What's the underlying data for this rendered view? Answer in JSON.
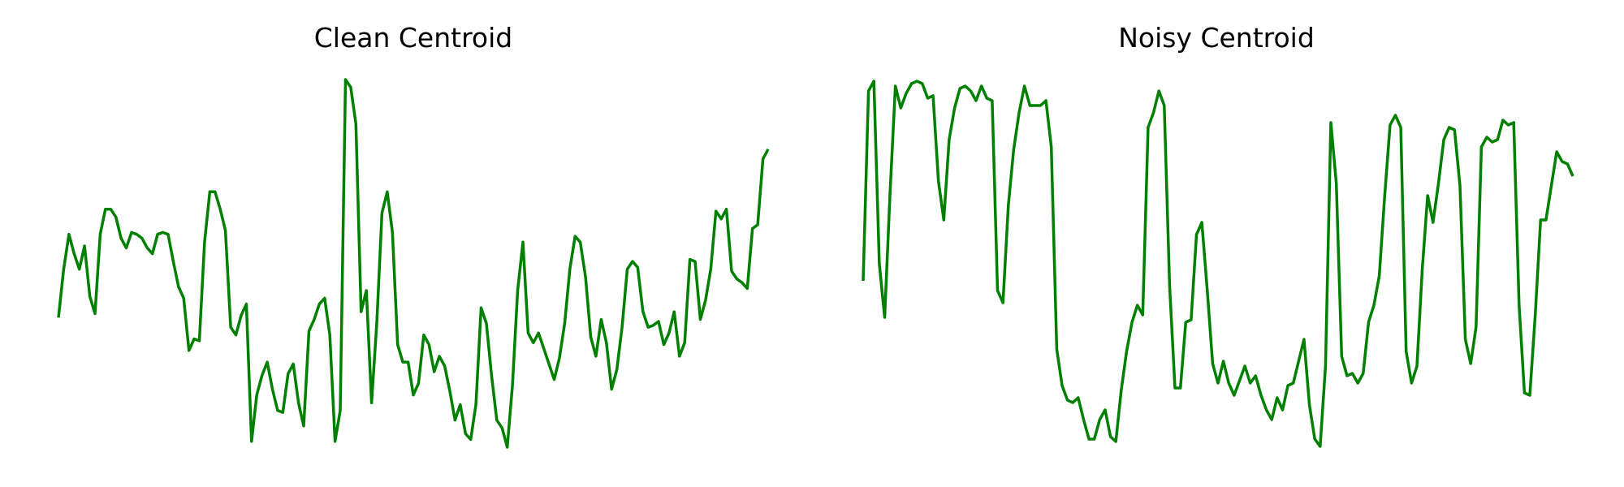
{
  "chart_data": [
    {
      "type": "line",
      "title": "Clean Centroid",
      "xlabel": "",
      "ylabel": "",
      "axes_visible": false,
      "grid": false,
      "color": "#008000",
      "values": [
        -0.38,
        -0.13,
        0.05,
        -0.05,
        -0.13,
        -0.01,
        -0.27,
        -0.36,
        0.05,
        0.18,
        0.18,
        0.14,
        0.03,
        -0.02,
        0.06,
        0.05,
        0.03,
        -0.02,
        -0.05,
        0.05,
        0.06,
        0.05,
        -0.09,
        -0.22,
        -0.28,
        -0.55,
        -0.49,
        -0.5,
        0.01,
        0.27,
        0.27,
        0.18,
        0.07,
        -0.43,
        -0.47,
        -0.37,
        -0.31,
        -1.02,
        -0.78,
        -0.68,
        -0.61,
        -0.75,
        -0.86,
        -0.87,
        -0.67,
        -0.62,
        -0.82,
        -0.94,
        -0.45,
        -0.39,
        -0.31,
        -0.28,
        -0.47,
        -1.02,
        -0.86,
        0.85,
        0.81,
        0.62,
        -0.35,
        -0.24,
        -0.82,
        -0.41,
        0.16,
        0.27,
        0.06,
        -0.52,
        -0.61,
        -0.61,
        -0.78,
        -0.72,
        -0.47,
        -0.52,
        -0.66,
        -0.58,
        -0.63,
        -0.76,
        -0.91,
        -0.83,
        -0.98,
        -1.01,
        -0.83,
        -0.33,
        -0.41,
        -0.68,
        -0.91,
        -0.95,
        -1.05,
        -0.73,
        -0.24,
        0.01,
        -0.46,
        -0.51,
        -0.46,
        -0.54,
        -0.62,
        -0.7,
        -0.59,
        -0.41,
        -0.13,
        0.04,
        0.01,
        -0.17,
        -0.48,
        -0.58,
        -0.39,
        -0.51,
        -0.75,
        -0.65,
        -0.43,
        -0.13,
        -0.09,
        -0.12,
        -0.35,
        -0.43,
        -0.42,
        -0.4,
        -0.52,
        -0.46,
        -0.35,
        -0.58,
        -0.51,
        -0.08,
        -0.09,
        -0.39,
        -0.29,
        -0.13,
        0.17,
        0.13,
        0.18,
        -0.14,
        -0.18,
        -0.2,
        -0.23,
        0.08,
        0.1,
        0.44,
        0.49
      ]
    },
    {
      "type": "line",
      "title": "Noisy Centroid",
      "xlabel": "",
      "ylabel": "",
      "axes_visible": false,
      "grid": false,
      "color": "#008000",
      "values": [
        -0.16,
        0.62,
        0.66,
        -0.09,
        -0.31,
        0.2,
        0.64,
        0.55,
        0.61,
        0.65,
        0.66,
        0.65,
        0.59,
        0.6,
        0.25,
        0.09,
        0.42,
        0.55,
        0.63,
        0.64,
        0.62,
        0.58,
        0.64,
        0.59,
        0.58,
        -0.2,
        -0.25,
        0.15,
        0.38,
        0.53,
        0.64,
        0.56,
        0.56,
        0.56,
        0.58,
        0.39,
        -0.44,
        -0.59,
        -0.65,
        -0.66,
        -0.64,
        -0.73,
        -0.81,
        -0.81,
        -0.73,
        -0.69,
        -0.8,
        -0.82,
        -0.61,
        -0.45,
        -0.33,
        -0.26,
        -0.3,
        0.47,
        0.53,
        0.62,
        0.56,
        -0.18,
        -0.6,
        -0.6,
        -0.33,
        -0.32,
        0.03,
        0.08,
        -0.2,
        -0.5,
        -0.58,
        -0.49,
        -0.58,
        -0.63,
        -0.57,
        -0.51,
        -0.58,
        -0.55,
        -0.63,
        -0.69,
        -0.73,
        -0.64,
        -0.69,
        -0.59,
        -0.58,
        -0.49,
        -0.4,
        -0.67,
        -0.81,
        -0.84,
        -0.51,
        0.49,
        0.24,
        -0.47,
        -0.55,
        -0.54,
        -0.58,
        -0.54,
        -0.33,
        -0.26,
        -0.14,
        0.19,
        0.48,
        0.52,
        0.47,
        -0.45,
        -0.58,
        -0.51,
        -0.11,
        0.19,
        0.08,
        0.24,
        0.42,
        0.47,
        0.46,
        0.23,
        -0.4,
        -0.5,
        -0.35,
        0.39,
        0.43,
        0.41,
        0.42,
        0.5,
        0.48,
        0.49,
        -0.26,
        -0.62,
        -0.63,
        -0.3,
        0.09,
        0.09,
        0.23,
        0.37,
        0.33,
        0.32,
        0.27
      ]
    }
  ]
}
